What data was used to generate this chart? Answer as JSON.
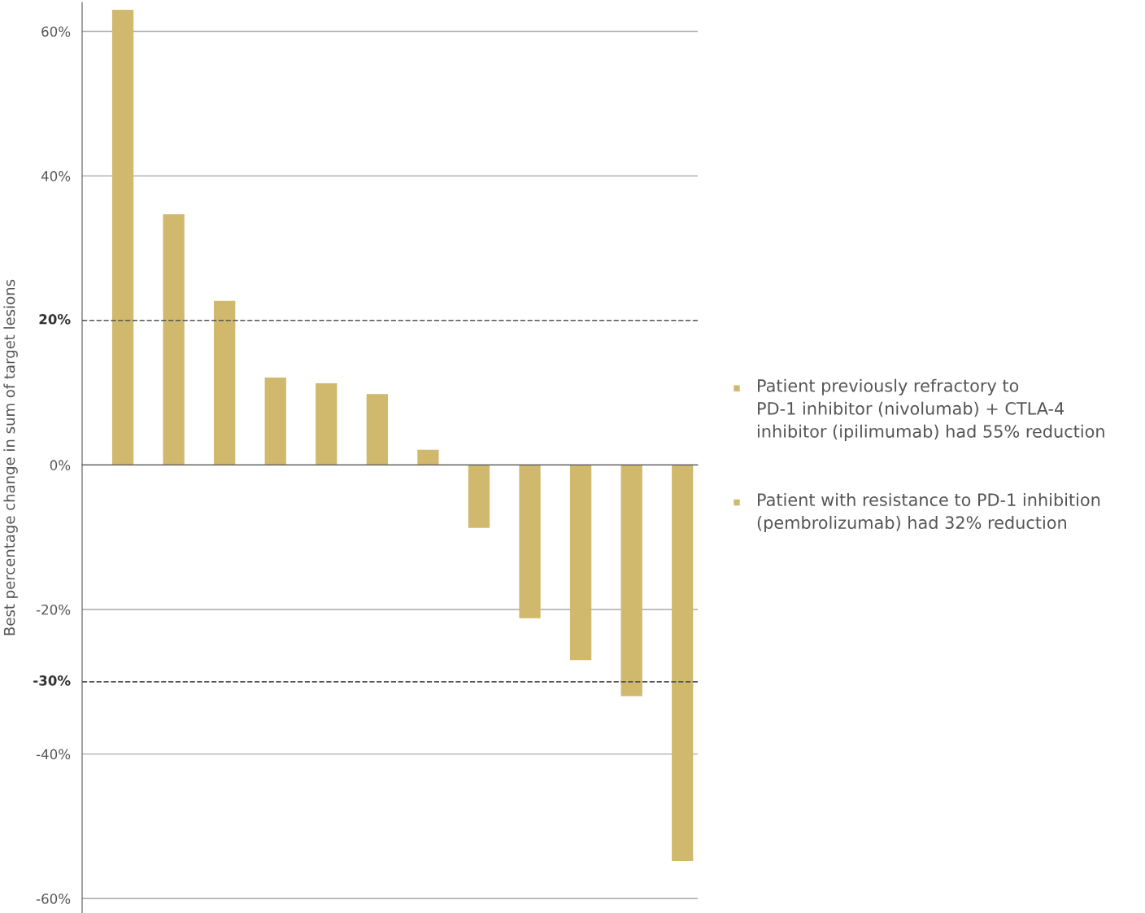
{
  "chart_data": {
    "type": "bar",
    "ylabel": "Best percentage change in sum of target lesions",
    "categories": [
      null,
      null,
      null,
      null,
      null,
      null,
      null,
      null,
      null,
      null,
      null,
      null
    ],
    "values": [
      63.0,
      34.7,
      22.7,
      12.1,
      11.3,
      9.8,
      2.1,
      -8.7,
      -21.2,
      -27.0,
      -32.0,
      -54.8
    ],
    "color": "#d0b86c",
    "ylim": [
      -62,
      64
    ],
    "yticks": [
      {
        "value": 60,
        "label": "60%"
      },
      {
        "value": 40,
        "label": "40%"
      },
      {
        "value": 0,
        "label": "0%"
      },
      {
        "value": -20,
        "label": "-20%"
      },
      {
        "value": -40,
        "label": "-40%"
      },
      {
        "value": -60,
        "label": "-60%"
      }
    ],
    "grid": "y",
    "ref_lines": [
      {
        "axis": "y",
        "value": 20,
        "label": "20%",
        "color": "#555555",
        "line_style": "dashed"
      },
      {
        "axis": "y",
        "value": -30,
        "label": "-30%",
        "color": "#555555",
        "line_style": "dashed"
      }
    ],
    "annotations": [
      "Patient previously refractory to\nPD-1 inhibitor (nivolumab) + CTLA-4\ninhibitor (ipilimumab) had 55% reduction",
      "Patient with resistance to PD-1 inhibition\n(pembrolizumab) had 32% reduction"
    ]
  }
}
